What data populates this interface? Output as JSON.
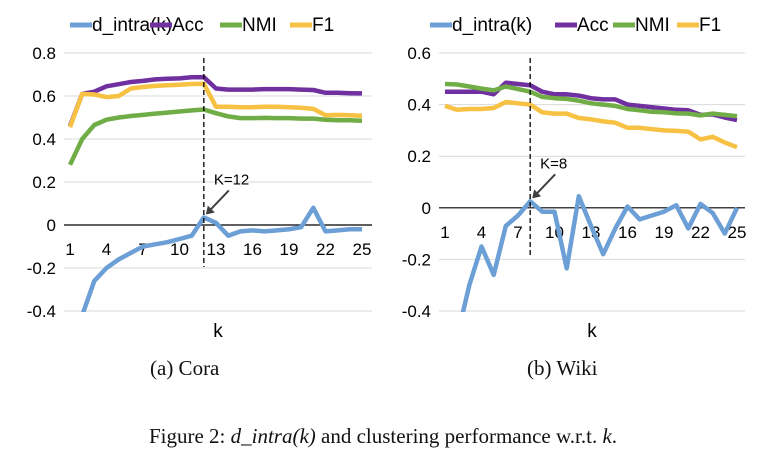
{
  "colors": {
    "d_intra": "#6c9fd6",
    "Acc": "#7030a0",
    "NMI": "#70ad47",
    "F1": "#f7c243"
  },
  "chart_data": [
    {
      "type": "line",
      "subtitle": "(a) Cora",
      "xlabel": "k",
      "ylabel": "",
      "ylim": [
        -0.4,
        0.8
      ],
      "yticks": [
        "0.8",
        "0.6",
        "0.4",
        "0.2",
        "0",
        "-0.2",
        "-0.4"
      ],
      "xticks": [
        "1",
        "4",
        "7",
        "10",
        "13",
        "16",
        "19",
        "22",
        "25"
      ],
      "grid": true,
      "legend": "top",
      "annotation": {
        "label": "K=12",
        "k": 12
      },
      "x": [
        1,
        2,
        3,
        4,
        5,
        6,
        7,
        8,
        9,
        10,
        11,
        12,
        13,
        14,
        15,
        16,
        17,
        18,
        19,
        20,
        21,
        22,
        23,
        24,
        25
      ],
      "series": [
        {
          "name": "d_intra(k)",
          "values": [
            -0.6,
            -0.42,
            -0.26,
            -0.2,
            -0.16,
            -0.13,
            -0.1,
            -0.09,
            -0.08,
            -0.065,
            -0.05,
            0.035,
            0.01,
            -0.05,
            -0.03,
            -0.025,
            -0.03,
            -0.025,
            -0.02,
            -0.01,
            0.08,
            -0.03,
            -0.025,
            -0.02,
            -0.02
          ]
        },
        {
          "name": "Acc",
          "values": [
            0.46,
            0.61,
            0.62,
            0.645,
            0.655,
            0.665,
            0.67,
            0.677,
            0.68,
            0.682,
            0.687,
            0.688,
            0.635,
            0.63,
            0.63,
            0.63,
            0.632,
            0.632,
            0.632,
            0.63,
            0.628,
            0.615,
            0.615,
            0.613,
            0.612
          ]
        },
        {
          "name": "NMI",
          "values": [
            0.28,
            0.4,
            0.465,
            0.49,
            0.5,
            0.507,
            0.512,
            0.518,
            0.523,
            0.528,
            0.533,
            0.537,
            0.52,
            0.505,
            0.497,
            0.497,
            0.498,
            0.497,
            0.497,
            0.495,
            0.495,
            0.49,
            0.487,
            0.487,
            0.485
          ]
        },
        {
          "name": "F1",
          "values": [
            0.455,
            0.61,
            0.607,
            0.595,
            0.6,
            0.635,
            0.642,
            0.647,
            0.65,
            0.652,
            0.656,
            0.657,
            0.55,
            0.55,
            0.548,
            0.548,
            0.55,
            0.55,
            0.548,
            0.545,
            0.54,
            0.51,
            0.512,
            0.51,
            0.508
          ]
        }
      ]
    },
    {
      "type": "line",
      "subtitle": "(b) Wiki",
      "xlabel": "k",
      "ylabel": "",
      "ylim": [
        -0.4,
        0.6
      ],
      "yticks": [
        "0.6",
        "0.4",
        "0.2",
        "0",
        "-0.2",
        "-0.4"
      ],
      "xticks": [
        "1",
        "4",
        "7",
        "10",
        "13",
        "16",
        "19",
        "22",
        "25"
      ],
      "grid": true,
      "legend": "top",
      "annotation": {
        "label": "K=8",
        "k": 8
      },
      "x": [
        1,
        2,
        3,
        4,
        5,
        6,
        7,
        8,
        9,
        10,
        11,
        12,
        13,
        14,
        15,
        16,
        17,
        18,
        19,
        20,
        21,
        22,
        23,
        24,
        25
      ],
      "series": [
        {
          "name": "d_intra(k)",
          "values": [
            -0.7,
            -0.5,
            -0.3,
            -0.15,
            -0.26,
            -0.07,
            -0.03,
            0.025,
            -0.015,
            -0.015,
            -0.235,
            0.045,
            -0.07,
            -0.18,
            -0.08,
            0.005,
            -0.045,
            -0.03,
            -0.015,
            0.01,
            -0.08,
            0.015,
            -0.02,
            -0.1,
            0.0
          ]
        },
        {
          "name": "Acc",
          "values": [
            0.45,
            0.45,
            0.45,
            0.45,
            0.44,
            0.485,
            0.48,
            0.475,
            0.45,
            0.44,
            0.44,
            0.435,
            0.425,
            0.42,
            0.42,
            0.4,
            0.395,
            0.39,
            0.385,
            0.38,
            0.378,
            0.36,
            0.362,
            0.35,
            0.34
          ]
        },
        {
          "name": "NMI",
          "values": [
            0.48,
            0.478,
            0.47,
            0.462,
            0.455,
            0.47,
            0.46,
            0.45,
            0.43,
            0.425,
            0.422,
            0.415,
            0.405,
            0.4,
            0.395,
            0.383,
            0.378,
            0.372,
            0.37,
            0.366,
            0.365,
            0.358,
            0.365,
            0.36,
            0.355
          ]
        },
        {
          "name": "F1",
          "values": [
            0.395,
            0.38,
            0.383,
            0.383,
            0.387,
            0.41,
            0.405,
            0.4,
            0.37,
            0.365,
            0.365,
            0.348,
            0.343,
            0.335,
            0.33,
            0.31,
            0.31,
            0.305,
            0.3,
            0.298,
            0.295,
            0.265,
            0.275,
            0.253,
            0.235
          ]
        }
      ]
    }
  ],
  "caption": {
    "prefix": "Figure 2: ",
    "math1": "d_intra(k)",
    "middle": " and clustering performance w.r.t. ",
    "math2": "k",
    "suffix": "."
  }
}
